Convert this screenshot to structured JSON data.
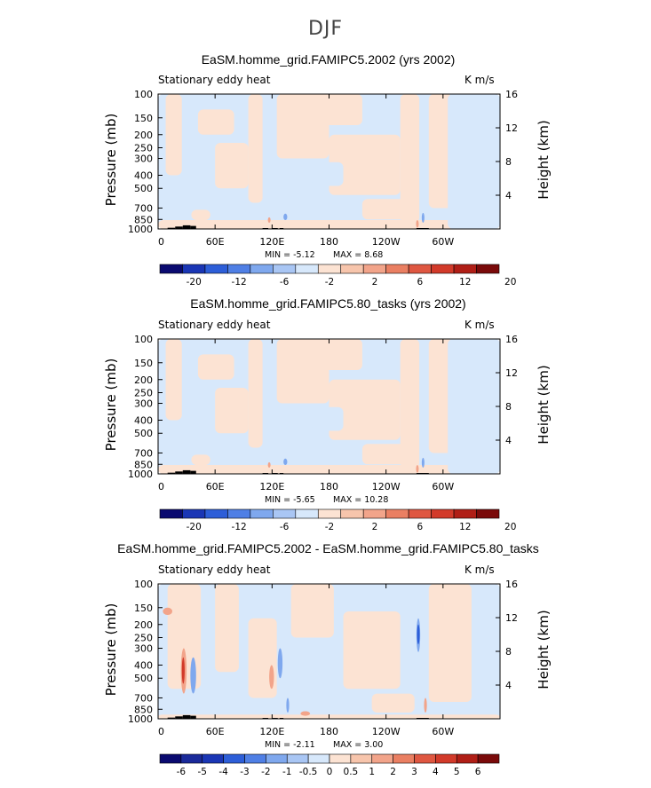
{
  "page_title": "DJF",
  "colors": {
    "neg_light": "#d7e8fb",
    "pos_light": "#fce3d3",
    "neg_mid": "#7fa8ee",
    "pos_mid": "#f2a48a",
    "neg_dark": "#2d5ed8",
    "pos_dark": "#d23a2a",
    "terrain": "#000000"
  },
  "chart_data": [
    {
      "type": "heatmap",
      "title": "EaSM.homme_grid.FAMIPC5.2002 (yrs 2002)",
      "left_label": "Stationary eddy heat",
      "units": "K m/s",
      "ylabel": "Pressure (mb)",
      "ylabel_right": "Height (km)",
      "pressure_ticks": [
        100,
        150,
        200,
        250,
        300,
        400,
        500,
        700,
        850,
        1000
      ],
      "height_ticks": [
        4,
        8,
        12,
        16
      ],
      "lon_ticks": [
        "0",
        "60E",
        "120E",
        "180",
        "120W",
        "60W"
      ],
      "xlim": [
        0,
        360
      ],
      "min_text": "MIN =   -5.12",
      "max_text": "MAX =    8.68",
      "colorbar_labels": [
        "-20",
        "-12",
        "-6",
        "-2",
        "2",
        "6",
        "12",
        "20"
      ],
      "colorbar_colors": [
        "#0a0a70",
        "#1a36b5",
        "#2d5ed8",
        "#4f7fe5",
        "#7fa8ee",
        "#a9c6f4",
        "#d7e8fb",
        "#fce3d3",
        "#f7c5ac",
        "#f2a48a",
        "#ea7f62",
        "#df5741",
        "#d23a2a",
        "#b01e16",
        "#7a0a0a"
      ]
    },
    {
      "type": "heatmap",
      "title": "EaSM.homme_grid.FAMIPC5.80_tasks (yrs 2002)",
      "left_label": "Stationary eddy heat",
      "units": "K m/s",
      "ylabel": "Pressure (mb)",
      "ylabel_right": "Height (km)",
      "pressure_ticks": [
        100,
        150,
        200,
        250,
        300,
        400,
        500,
        700,
        850,
        1000
      ],
      "height_ticks": [
        4,
        8,
        12,
        16
      ],
      "lon_ticks": [
        "0",
        "60E",
        "120E",
        "180",
        "120W",
        "60W"
      ],
      "xlim": [
        0,
        360
      ],
      "min_text": "MIN =   -5.65",
      "max_text": "MAX =   10.28",
      "colorbar_labels": [
        "-20",
        "-12",
        "-6",
        "-2",
        "2",
        "6",
        "12",
        "20"
      ],
      "colorbar_colors": [
        "#0a0a70",
        "#1a36b5",
        "#2d5ed8",
        "#4f7fe5",
        "#7fa8ee",
        "#a9c6f4",
        "#d7e8fb",
        "#fce3d3",
        "#f7c5ac",
        "#f2a48a",
        "#ea7f62",
        "#df5741",
        "#d23a2a",
        "#b01e16",
        "#7a0a0a"
      ]
    },
    {
      "type": "heatmap",
      "title": "EaSM.homme_grid.FAMIPC5.2002 - EaSM.homme_grid.FAMIPC5.80_tasks",
      "left_label": "Stationary eddy heat",
      "units": "K m/s",
      "ylabel": "Pressure (mb)",
      "ylabel_right": "Height (km)",
      "pressure_ticks": [
        100,
        150,
        200,
        250,
        300,
        400,
        500,
        700,
        850,
        1000
      ],
      "height_ticks": [
        4,
        8,
        12,
        16
      ],
      "lon_ticks": [
        "0",
        "60E",
        "120E",
        "180",
        "120W",
        "60W"
      ],
      "xlim": [
        0,
        360
      ],
      "min_text": "MIN =   -2.11",
      "max_text": "MAX =    3.00",
      "colorbar_labels": [
        "-6",
        "-5",
        "-4",
        "-3",
        "-2",
        "-1",
        "-0.5",
        "0",
        "0.5",
        "1",
        "2",
        "3",
        "4",
        "5",
        "6"
      ],
      "colorbar_colors": [
        "#0a0a70",
        "#1a2a9a",
        "#1a36b5",
        "#2d5ed8",
        "#4f7fe5",
        "#7fa8ee",
        "#a9c6f4",
        "#d7e8fb",
        "#fce3d3",
        "#f7c5ac",
        "#f2a48a",
        "#ea7f62",
        "#df5741",
        "#d23a2a",
        "#b01e16",
        "#7a0a0a"
      ]
    }
  ]
}
